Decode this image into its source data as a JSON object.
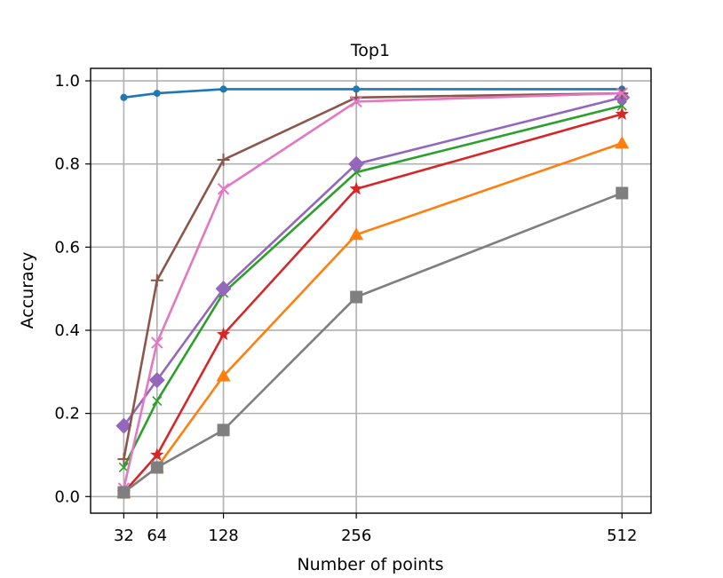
{
  "chart_data": {
    "type": "line",
    "title": "Top1",
    "xlabel": "Number of points",
    "ylabel": "Accuracy",
    "x": [
      32,
      64,
      128,
      256,
      512
    ],
    "x_ticks": [
      "32",
      "64",
      "128",
      "256",
      "512"
    ],
    "y_ticks": [
      "0.0",
      "0.2",
      "0.4",
      "0.6",
      "0.8",
      "1.0"
    ],
    "xlim": [
      0,
      540
    ],
    "ylim": [
      -0.04,
      1.03
    ],
    "grid": true,
    "series": [
      {
        "color": "#1f77b4",
        "marker": "circle",
        "values": [
          0.96,
          0.97,
          0.98,
          0.98,
          0.98
        ]
      },
      {
        "color": "#ff7f0e",
        "marker": "triangle",
        "values": [
          0.01,
          0.07,
          0.29,
          0.63,
          0.85
        ]
      },
      {
        "color": "#2ca02c",
        "marker": "x-thin",
        "values": [
          0.07,
          0.23,
          0.49,
          0.78,
          0.94
        ]
      },
      {
        "color": "#d62728",
        "marker": "star",
        "values": [
          0.01,
          0.1,
          0.39,
          0.74,
          0.92
        ]
      },
      {
        "color": "#9467bd",
        "marker": "diamond",
        "values": [
          0.17,
          0.28,
          0.5,
          0.8,
          0.96
        ]
      },
      {
        "color": "#8c564b",
        "marker": "plus",
        "values": [
          0.09,
          0.52,
          0.81,
          0.96,
          0.97
        ]
      },
      {
        "color": "#e377c2",
        "marker": "x",
        "values": [
          0.02,
          0.37,
          0.74,
          0.95,
          0.97
        ]
      },
      {
        "color": "#7f7f7f",
        "marker": "square",
        "values": [
          0.01,
          0.07,
          0.16,
          0.48,
          0.73
        ]
      }
    ]
  }
}
